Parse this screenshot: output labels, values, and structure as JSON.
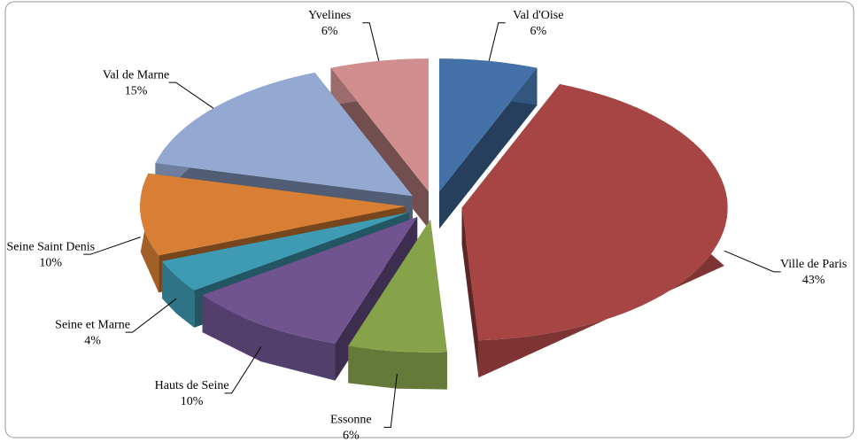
{
  "chart_data": {
    "type": "pie3d",
    "categories": [
      "Val d'Oise",
      "Ville de Paris",
      "Essonne",
      "Hauts de Seine",
      "Seine et Marne",
      "Seine Saint Denis",
      "Val de Marne",
      "Yvelines"
    ],
    "values": [
      6,
      43,
      6,
      10,
      4,
      10,
      15,
      6
    ],
    "value_labels": [
      "6%",
      "43%",
      "6%",
      "10%",
      "4%",
      "10%",
      "15%",
      "6%"
    ],
    "colors": [
      "#4472a8",
      "#a64543",
      "#86a34a",
      "#6f5490",
      "#3f9bb3",
      "#d97f35",
      "#93a9d2",
      "#d08e8e"
    ]
  }
}
